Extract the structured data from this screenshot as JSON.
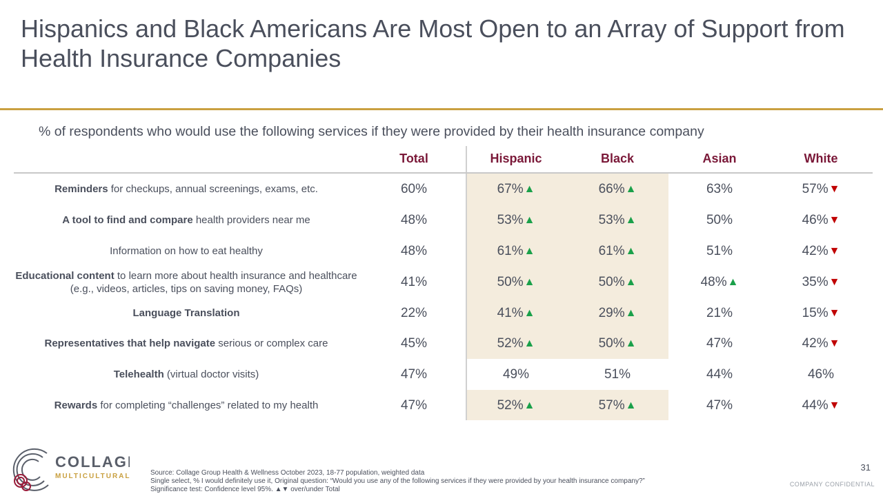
{
  "title": "Hispanics and Black Americans Are Most Open to an Array of Support from Health Insurance Companies",
  "subtitle": "% of respondents who would use the following services if they were provided by their health insurance company",
  "columns": [
    "Total",
    "Hispanic",
    "Black",
    "Asian",
    "White"
  ],
  "rows": [
    {
      "bold": "Reminders",
      "rest": " for checkups, annual screenings, exams, etc.",
      "values": [
        "60%",
        "67%",
        "66%",
        "63%",
        "57%"
      ],
      "sig": [
        "none",
        "up",
        "up",
        "none",
        "down"
      ]
    },
    {
      "bold": "A tool to find and compare",
      "rest": " health providers near me",
      "values": [
        "48%",
        "53%",
        "53%",
        "50%",
        "46%"
      ],
      "sig": [
        "none",
        "up",
        "up",
        "none",
        "down"
      ]
    },
    {
      "bold": "",
      "rest": "Information on how to eat healthy",
      "values": [
        "48%",
        "61%",
        "61%",
        "51%",
        "42%"
      ],
      "sig": [
        "none",
        "up",
        "up",
        "none",
        "down"
      ]
    },
    {
      "bold": "Educational content",
      "rest": " to learn more about health insurance and healthcare (e.g., videos, articles, tips on saving money, FAQs)",
      "values": [
        "41%",
        "50%",
        "50%",
        "48%",
        "35%"
      ],
      "sig": [
        "none",
        "up",
        "up",
        "up",
        "down"
      ]
    },
    {
      "bold": "Language Translation",
      "rest": "",
      "values": [
        "22%",
        "41%",
        "29%",
        "21%",
        "15%"
      ],
      "sig": [
        "none",
        "up",
        "up",
        "none",
        "down"
      ]
    },
    {
      "bold": "Representatives that help navigate",
      "rest": " serious or complex care",
      "values": [
        "45%",
        "52%",
        "50%",
        "47%",
        "42%"
      ],
      "sig": [
        "none",
        "up",
        "up",
        "none",
        "down"
      ]
    },
    {
      "bold": "Telehealth",
      "rest": " (virtual doctor visits)",
      "values": [
        "47%",
        "49%",
        "51%",
        "44%",
        "46%"
      ],
      "sig": [
        "none",
        "none",
        "none",
        "none",
        "none"
      ]
    },
    {
      "bold": "Rewards",
      "rest": " for completing “challenges”  related to my health",
      "values": [
        "47%",
        "52%",
        "57%",
        "47%",
        "44%"
      ],
      "sig": [
        "none",
        "up",
        "up",
        "none",
        "down"
      ]
    }
  ],
  "colors": {
    "header": "#7a1838",
    "up": "#1aa04a",
    "down": "#c00000",
    "gold": "#c9a040",
    "shade": "#f4ecdd"
  },
  "logo": {
    "name": "COLLAGE",
    "sub": "MULTICULTURAL"
  },
  "source": [
    "Source: Collage Group Health & Wellness October 2023, 18-77 population, weighted data",
    "Single select, % I would definitely use it, Original question: “Would you use any of the following services if they were provided by your health insurance company?”",
    "Significance test: Confidence level 95%. ▲▼ over/under Total"
  ],
  "page_number": "31",
  "confidential": "COMPANY  CONFIDENTIAL"
}
